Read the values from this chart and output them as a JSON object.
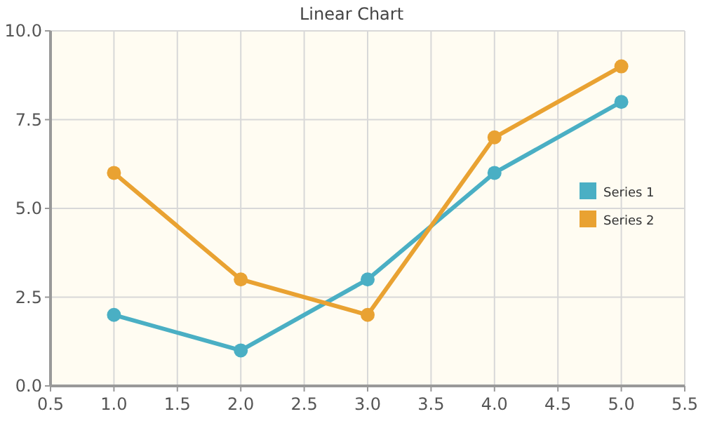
{
  "chart_data": {
    "type": "line",
    "title": "Linear Chart",
    "x": [
      1,
      2,
      3,
      4,
      5
    ],
    "series": [
      {
        "name": "Series 1",
        "color": "#4aafc4",
        "values": [
          2,
          1,
          3,
          6,
          8
        ]
      },
      {
        "name": "Series 2",
        "color": "#e9a232",
        "values": [
          6,
          3,
          2,
          7,
          9
        ]
      }
    ],
    "xlim": [
      0.5,
      5.5
    ],
    "xticks": [
      {
        "value": 0.5,
        "label": "0.5"
      },
      {
        "value": 1,
        "label": "1.0"
      },
      {
        "value": 1.5,
        "label": "1.5"
      },
      {
        "value": 2,
        "label": "2.0"
      },
      {
        "value": 2.5,
        "label": "2.5"
      },
      {
        "value": 3,
        "label": "3.0"
      },
      {
        "value": 3.5,
        "label": "3.5"
      },
      {
        "value": 4,
        "label": "4.0"
      },
      {
        "value": 4.5,
        "label": "4.5"
      },
      {
        "value": 5,
        "label": "5.0"
      },
      {
        "value": 5.5,
        "label": "5.5"
      }
    ],
    "ylim": [
      0,
      10
    ],
    "yticks": [
      {
        "value": 0,
        "label": "0.0"
      },
      {
        "value": 2.5,
        "label": "2.5"
      },
      {
        "value": 5,
        "label": "5.0"
      },
      {
        "value": 7.5,
        "label": "7.5"
      },
      {
        "value": 10,
        "label": "10.0"
      }
    ],
    "grid": true,
    "legend": "right",
    "marker": "circle",
    "line_style": "solid"
  }
}
